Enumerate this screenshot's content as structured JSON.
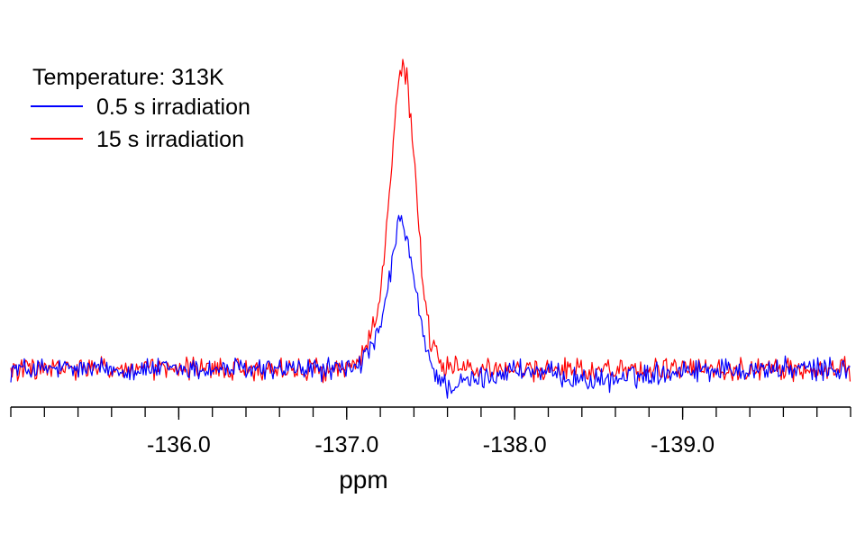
{
  "chart_data": {
    "type": "line",
    "title": "",
    "xlabel": "ppm",
    "ylabel": "",
    "x_reversed": true,
    "xlim": [
      -135.0,
      -140.0
    ],
    "ylim": [
      0,
      1.0
    ],
    "x_major_ticks": [
      -136.0,
      -137.0,
      -138.0,
      -139.0
    ],
    "x_tick_labels": [
      "-136.0",
      "-137.0",
      "-138.0",
      "-139.0"
    ],
    "x_minor_step": 0.2,
    "grid": false,
    "legend": {
      "placement": "top-left",
      "title": "Temperature: 313K",
      "entries": [
        {
          "label": "0.5 s irradiation",
          "color": "#0000ff"
        },
        {
          "label": "15 s irradiation",
          "color": "#ff0000"
        }
      ]
    },
    "series": [
      {
        "name": "0.5 s irradiation",
        "color": "#0000ff",
        "x": [
          -135.0,
          -136.5,
          -137.0,
          -137.1,
          -137.2,
          -137.3,
          -137.33,
          -137.36,
          -137.4,
          -137.45,
          -137.5,
          -137.6,
          -138.0,
          -138.5,
          -139.0,
          -140.0
        ],
        "y": [
          0,
          0,
          0,
          0.03,
          0.12,
          0.45,
          0.5,
          0.42,
          0.3,
          0.12,
          0.01,
          -0.06,
          0,
          -0.04,
          0,
          0
        ]
      },
      {
        "name": "15 s irradiation",
        "color": "#ff0000",
        "x": [
          -135.0,
          -136.5,
          -137.0,
          -137.1,
          -137.2,
          -137.28,
          -137.32,
          -137.36,
          -137.4,
          -137.45,
          -137.5,
          -137.6,
          -138.0,
          -139.0,
          -140.0
        ],
        "y": [
          0,
          0,
          0,
          0.05,
          0.22,
          0.75,
          1.0,
          0.95,
          0.7,
          0.3,
          0.08,
          0,
          0,
          0,
          0
        ]
      }
    ]
  }
}
